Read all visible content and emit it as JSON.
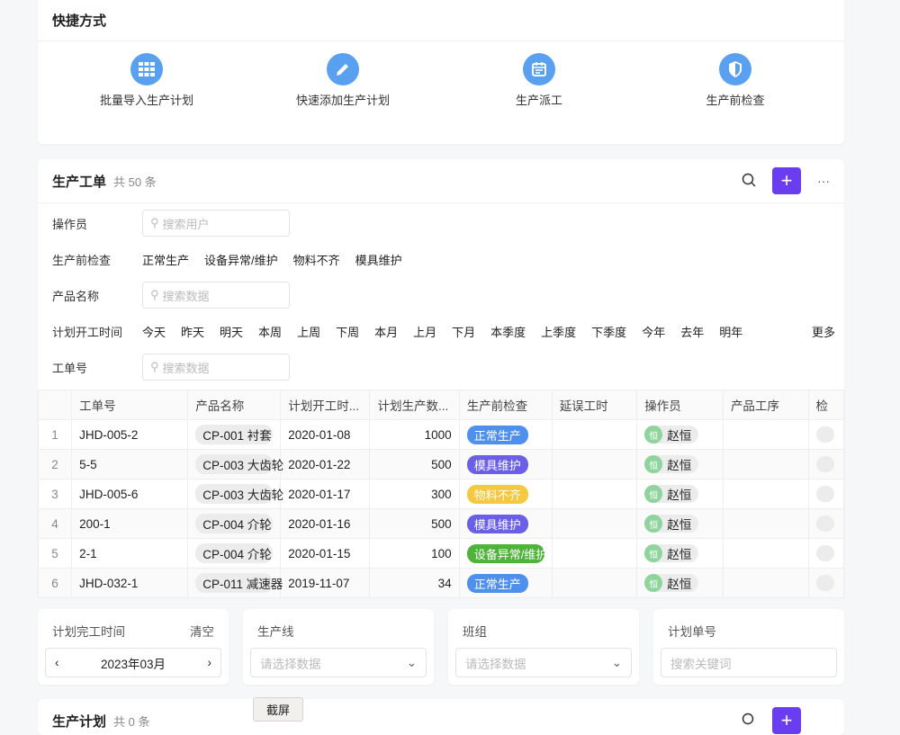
{
  "quick": {
    "title": "快捷方式",
    "items": [
      {
        "label": "批量导入生产计划",
        "icon": "table-grid-icon"
      },
      {
        "label": "快速添加生产计划",
        "icon": "pencil-icon"
      },
      {
        "label": "生产派工",
        "icon": "calendar-icon"
      },
      {
        "label": "生产前检查",
        "icon": "shield-icon"
      }
    ]
  },
  "orders": {
    "title": "生产工单",
    "count": "共 50 条",
    "add": "+",
    "more": "···",
    "filters": {
      "operator": {
        "label": "操作员",
        "placeholder": "搜索用户"
      },
      "check": {
        "label": "生产前检查",
        "options": [
          "正常生产",
          "设备异常/维护",
          "物料不齐",
          "模具维护"
        ]
      },
      "product": {
        "label": "产品名称",
        "placeholder": "搜索数据"
      },
      "start": {
        "label": "计划开工时间",
        "options": [
          "今天",
          "昨天",
          "明天",
          "本周",
          "上周",
          "下周",
          "本月",
          "上月",
          "下月",
          "本季度",
          "上季度",
          "下季度",
          "今年",
          "去年",
          "明年"
        ],
        "more": "更多"
      },
      "order_no": {
        "label": "工单号",
        "placeholder": "搜索数据"
      }
    },
    "columns": [
      "",
      "工单号",
      "产品名称",
      "计划开工时...",
      "计划生产数...",
      "生产前检查",
      "延误工时",
      "操作员",
      "产品工序",
      "检"
    ],
    "rows": [
      {
        "idx": "1",
        "no": "JHD-005-2",
        "product": "CP-001 衬套",
        "date": "2020-01-08",
        "qty": "1000",
        "check": "正常生产",
        "color": "#4e90ec",
        "op": "赵恒",
        "av": "恒"
      },
      {
        "idx": "2",
        "no": "5-5",
        "product": "CP-003 大齿轮",
        "date": "2020-01-22",
        "qty": "500",
        "check": "模具维护",
        "color": "#6a5fe6",
        "op": "赵恒",
        "av": "恒"
      },
      {
        "idx": "3",
        "no": "JHD-005-6",
        "product": "CP-003 大齿轮",
        "date": "2020-01-17",
        "qty": "300",
        "check": "物料不齐",
        "color": "#f5c842",
        "op": "赵恒",
        "av": "恒"
      },
      {
        "idx": "4",
        "no": "200-1",
        "product": "CP-004 介轮",
        "date": "2020-01-16",
        "qty": "500",
        "check": "模具维护",
        "color": "#6a5fe6",
        "op": "赵恒",
        "av": "恒"
      },
      {
        "idx": "5",
        "no": "2-1",
        "product": "CP-004 介轮",
        "date": "2020-01-15",
        "qty": "100",
        "check": "设备异常/维护",
        "color": "#4fb23a",
        "op": "赵恒",
        "av": "恒"
      },
      {
        "idx": "6",
        "no": "JHD-032-1",
        "product": "CP-011 减速器",
        "date": "2019-11-07",
        "qty": "34",
        "check": "正常生产",
        "color": "#4e90ec",
        "op": "赵恒",
        "av": "恒"
      }
    ]
  },
  "bottom": {
    "finish": {
      "label": "计划完工时间",
      "clear": "清空",
      "value": "2023年03月"
    },
    "line": {
      "label": "生产线",
      "placeholder": "请选择数据"
    },
    "team": {
      "label": "班组",
      "placeholder": "请选择数据"
    },
    "plan_no": {
      "label": "计划单号",
      "placeholder": "搜索关键词"
    }
  },
  "plan": {
    "title": "生产计划",
    "count": "共 0 条"
  },
  "tooltip": "截屏"
}
